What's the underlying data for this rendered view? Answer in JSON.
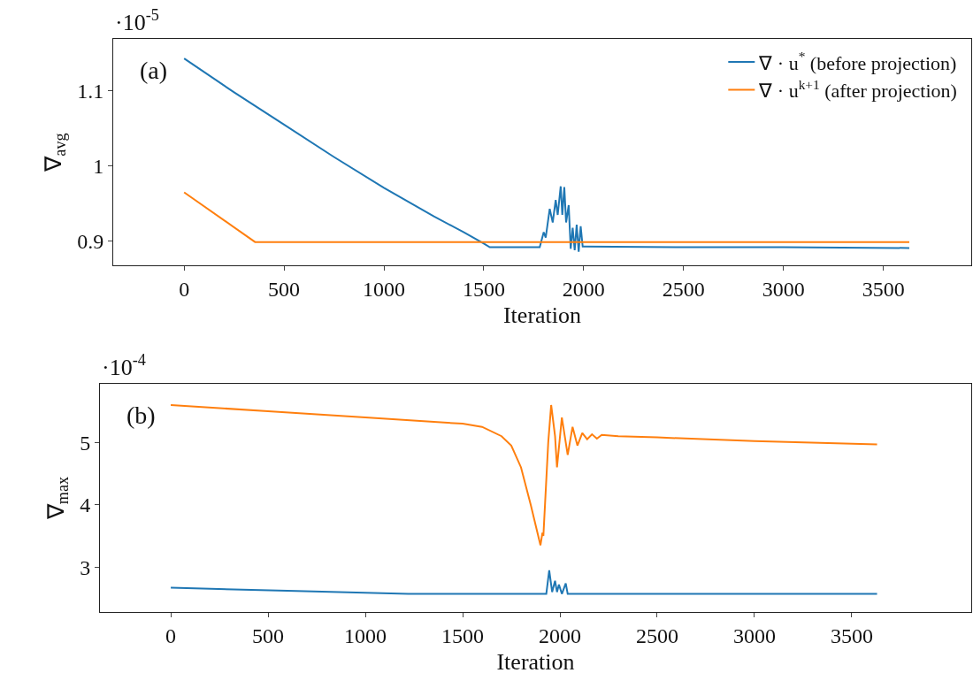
{
  "chart_data": [
    {
      "type": "line",
      "xlabel": "Iteration",
      "ylabel": "∇$_{avg}$",
      "annotations": [
        "·10$^{-5}$",
        "(a)"
      ],
      "xlim": [
        -355,
        3940
      ],
      "xticks": [
        0,
        500,
        1000,
        1500,
        2000,
        2500,
        3000,
        3500
      ],
      "ylim": [
        0.868,
        1.169
      ],
      "yticks": [
        0.9,
        1,
        1.1
      ],
      "legend": "top right",
      "series": [
        {
          "name": "∇ · u$^{*}$ (before projection)",
          "color": "#1f77b4",
          "x": [
            0,
            250,
            500,
            750,
            1000,
            1250,
            1400,
            1500,
            1530,
            1780,
            1800,
            1810,
            1830,
            1845,
            1860,
            1870,
            1885,
            1893,
            1903,
            1912,
            1925,
            1935,
            1945,
            1955,
            1965,
            1975,
            1985,
            1995,
            2000,
            2500,
            3000,
            3630
          ],
          "values": [
            1.143,
            1.098,
            1.055,
            1.012,
            0.971,
            0.933,
            0.912,
            0.897,
            0.892,
            0.892,
            0.912,
            0.905,
            0.943,
            0.925,
            0.955,
            0.935,
            0.973,
            0.935,
            0.972,
            0.925,
            0.948,
            0.89,
            0.918,
            0.888,
            0.922,
            0.886,
            0.92,
            0.893,
            0.893,
            0.892,
            0.892,
            0.891
          ]
        },
        {
          "name": "∇ · u$^{k+1}$ (after projection)",
          "color": "#ff7f0e",
          "x": [
            0,
            355,
            3630
          ],
          "values": [
            0.965,
            0.899,
            0.899
          ]
        }
      ]
    },
    {
      "type": "line",
      "xlabel": "Iteration",
      "ylabel": "∇$_{max}$",
      "annotations": [
        "·10$^{-4}$",
        "(b)"
      ],
      "xlim": [
        -364,
        4114
      ],
      "xticks": [
        0,
        500,
        1000,
        1500,
        2000,
        2500,
        3000,
        3500
      ],
      "ylim": [
        2.28,
        5.94
      ],
      "yticks": [
        3,
        4,
        5
      ],
      "legend": false,
      "series": [
        {
          "color": "#ff7f0e",
          "x": [
            0,
            500,
            1000,
            1500,
            1600,
            1700,
            1750,
            1800,
            1850,
            1900,
            1910,
            1915,
            1940,
            1955,
            1975,
            1985,
            2010,
            2040,
            2065,
            2090,
            2115,
            2140,
            2165,
            2190,
            2215,
            2300,
            2500,
            3000,
            3630
          ],
          "values": [
            5.6,
            5.5,
            5.4,
            5.3,
            5.25,
            5.1,
            4.95,
            4.6,
            4.0,
            3.35,
            3.55,
            3.5,
            5.0,
            5.6,
            5.1,
            4.6,
            5.4,
            4.8,
            5.25,
            4.95,
            5.15,
            5.05,
            5.13,
            5.06,
            5.12,
            5.1,
            5.08,
            5.02,
            4.97
          ]
        },
        {
          "color": "#1f77b4",
          "x": [
            0,
            600,
            1220,
            1930,
            1945,
            1960,
            1975,
            1985,
            1995,
            2010,
            2030,
            2040,
            3630
          ],
          "values": [
            2.67,
            2.62,
            2.57,
            2.57,
            2.95,
            2.6,
            2.78,
            2.6,
            2.72,
            2.57,
            2.74,
            2.57,
            2.57
          ]
        }
      ]
    }
  ]
}
